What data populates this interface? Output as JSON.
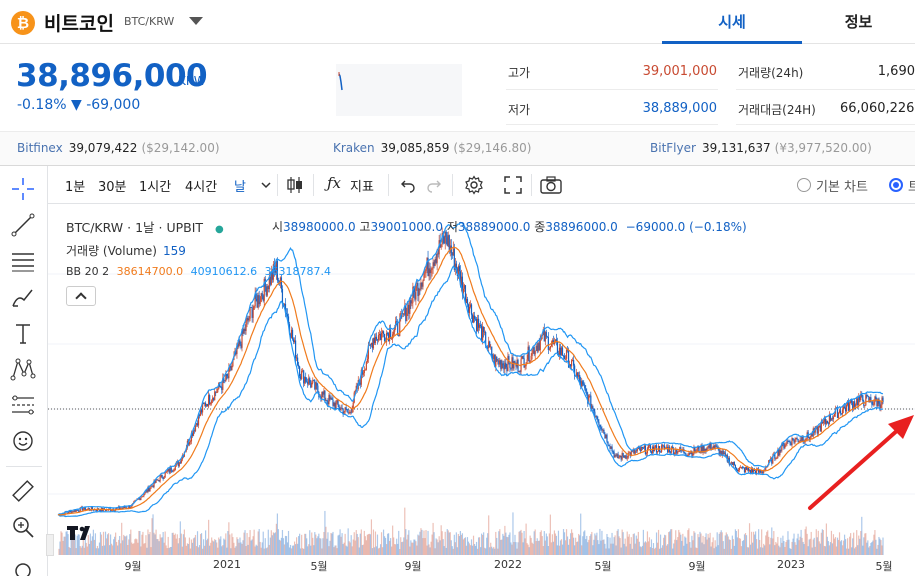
{
  "header": {
    "coin_logo": "₿",
    "coin_name": "비트코인",
    "pair": "BTC/KRW",
    "tabs": [
      "시세",
      "정보"
    ]
  },
  "price": {
    "current": "38,896,000",
    "unit": "KRW",
    "change": "-0.18% ▼ -69,000"
  },
  "stats": {
    "high_label": "고가",
    "high_value": "39,001,000",
    "low_label": "저가",
    "low_value": "38,889,000",
    "volume_label": "거래량(24h)",
    "volume_value": "1,690",
    "amount_label": "거래대금(24H)",
    "amount_value": "66,060,226"
  },
  "exchanges": [
    {
      "name": "Bitfinex",
      "price": "39,079,422",
      "usd": "($29,142.00)"
    },
    {
      "name": "Kraken",
      "price": "39,085,859",
      "usd": "($29,146.80)"
    },
    {
      "name": "BitFlyer",
      "price": "39,131,637",
      "usd": "(¥3,977,520.00)"
    }
  ],
  "toolbar": {
    "intervals": [
      "1분",
      "30분",
      "1시간",
      "4시간",
      "날"
    ],
    "indicators_label": "지표",
    "basic_chart_label": "기본 차트",
    "tradingview_label": "트"
  },
  "legend": {
    "symbol": "BTC/KRW · 1날 · UPBIT",
    "dot": "●",
    "open_label": "시",
    "open_value": "38980000.0",
    "high_label": "고",
    "high_value": "39001000.0",
    "low_label": "저",
    "low_value": "38889000.0",
    "close_label": "종",
    "close_value": "38896000.0",
    "change_value": "−69000.0 (−0.18%)",
    "volume_label": "거래량 (Volume)",
    "volume_value": "159",
    "bb_label": "BB 20 2",
    "bb_mid": "38614700.0",
    "bb_upper": "40910612.6",
    "bb_lower": "36318787.4"
  },
  "colors": {
    "accent": "#1261c4",
    "bb_band": "#2196f3",
    "bb_basis": "#f07b1d",
    "candle_up": "#c84a31",
    "candle_down": "#1261c4",
    "arrow": "#e82020"
  },
  "chart_data": {
    "type": "line",
    "symbol": "BTC/KRW",
    "x_tick_labels": [
      "9월",
      "2021",
      "5월",
      "9월",
      "2022",
      "5월",
      "9월",
      "2023",
      "5월"
    ],
    "x": [
      "2020-07",
      "2020-08",
      "2020-09",
      "2020-10",
      "2020-11",
      "2020-12",
      "2021-01",
      "2021-02",
      "2021-03",
      "2021-04",
      "2021-05",
      "2021-06",
      "2021-07",
      "2021-08",
      "2021-09",
      "2021-10",
      "2021-11",
      "2021-12",
      "2022-01",
      "2022-02",
      "2022-03",
      "2022-04",
      "2022-05",
      "2022-06",
      "2022-07",
      "2022-08",
      "2022-09",
      "2022-10",
      "2022-11",
      "2022-12",
      "2023-01",
      "2023-02",
      "2023-03",
      "2023-04",
      "2023-05"
    ],
    "series": [
      {
        "values": [
          11000000,
          12500000,
          12200000,
          13000000,
          19000000,
          24000000,
          38000000,
          45000000,
          62000000,
          72000000,
          46000000,
          40000000,
          36000000,
          55000000,
          57000000,
          70000000,
          80000000,
          62000000,
          49000000,
          48000000,
          55000000,
          50000000,
          38000000,
          25000000,
          27000000,
          27500000,
          26500000,
          28000000,
          22500000,
          21500000,
          29000000,
          30500000,
          36000000,
          39500000,
          38896000
        ]
      }
    ]
  }
}
